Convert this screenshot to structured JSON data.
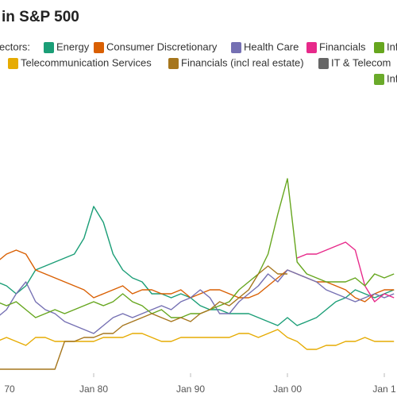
{
  "chart_data": {
    "type": "line",
    "title": "in S&P 500",
    "legend_title": "ectors:",
    "x": [
      1970,
      1971,
      1972,
      1973,
      1974,
      1975,
      1976,
      1977,
      1978,
      1979,
      1980,
      1981,
      1982,
      1983,
      1984,
      1985,
      1986,
      1987,
      1988,
      1989,
      1990,
      1991,
      1992,
      1993,
      1994,
      1995,
      1996,
      1997,
      1998,
      1999,
      2000,
      2001,
      2002,
      2003,
      2004,
      2005,
      2006,
      2007,
      2008,
      2009,
      2010,
      2011
    ],
    "xlim": [
      1970.33,
      2011.31
    ],
    "xticks": [
      {
        "value": 1970,
        "label": "70"
      },
      {
        "value": 1980,
        "label": "Jan 80"
      },
      {
        "value": 1990,
        "label": "Jan 90"
      },
      {
        "value": 2000,
        "label": "Jan 00"
      },
      {
        "value": 2010,
        "label": "Jan 1"
      }
    ],
    "ylim": [
      0,
      28
    ],
    "series": [
      {
        "name": "Energy",
        "color": "#1b9e77",
        "values": [
          11.5,
          11,
          10,
          11,
          13,
          13.5,
          14,
          14.5,
          15,
          17,
          21,
          19,
          15,
          13,
          12,
          11.5,
          10,
          10,
          9.5,
          10,
          9.5,
          8.5,
          8,
          8,
          7.5,
          7.5,
          7.5,
          7,
          6.5,
          6,
          7,
          6,
          6.5,
          7,
          8,
          9,
          9.5,
          10.5,
          10,
          9.5,
          10,
          10.5
        ]
      },
      {
        "name": "Consumer Discretionary",
        "color": "#d95f02",
        "values": [
          14,
          15,
          15.5,
          15,
          13,
          12.5,
          12,
          11.5,
          11,
          10.5,
          9.5,
          10,
          10.5,
          11,
          10,
          10.5,
          10.5,
          10,
          10,
          10.5,
          9.5,
          10,
          10.5,
          10.5,
          10,
          9.5,
          9.5,
          10,
          11,
          12,
          13,
          12.5,
          12,
          11.5,
          11.5,
          11,
          10.5,
          9.5,
          9,
          10,
          10.5,
          10.5
        ]
      },
      {
        "name": "Health Care",
        "color": "#7570b3",
        "values": [
          7,
          8,
          10,
          11.5,
          9,
          8,
          7.5,
          6.5,
          6,
          5.5,
          5,
          6,
          7,
          7.5,
          7,
          7.5,
          8,
          8.5,
          8,
          9,
          9.5,
          10.5,
          9.5,
          7.5,
          7.5,
          9,
          10,
          11,
          12.5,
          11.5,
          13,
          12.5,
          12,
          11.5,
          10.5,
          10,
          9.5,
          9,
          9.5,
          10,
          9.5,
          10
        ]
      },
      {
        "name": "Financials",
        "color": "#e7298a",
        "values": [
          null,
          null,
          null,
          null,
          null,
          null,
          null,
          null,
          null,
          null,
          null,
          null,
          null,
          null,
          null,
          null,
          null,
          null,
          null,
          null,
          null,
          null,
          null,
          null,
          null,
          null,
          null,
          null,
          null,
          null,
          null,
          14.5,
          15,
          15,
          15.5,
          16,
          16.5,
          15.5,
          11,
          9,
          10,
          9.5
        ]
      },
      {
        "name": "Inf",
        "color": "#66a61e",
        "values": [
          9,
          8.5,
          9,
          8,
          7,
          7.5,
          8,
          7.5,
          8,
          8.5,
          9,
          8.5,
          9,
          10,
          9,
          8.5,
          7.5,
          8,
          7,
          7,
          7.5,
          7.5,
          8,
          8.5,
          9,
          10.5,
          11.5,
          12.5,
          15,
          20,
          24.5,
          14,
          12.5,
          12,
          11.5,
          11.5,
          11.5,
          12,
          11,
          12.5,
          12,
          12.5
        ]
      },
      {
        "name": "Telecommunication Services",
        "color": "#e6ab02",
        "values": [
          4,
          4.5,
          4,
          3.5,
          4.5,
          4.5,
          4,
          4,
          4,
          4,
          4,
          4.5,
          4.5,
          4.5,
          5,
          5,
          4.5,
          4,
          4,
          4.5,
          4.5,
          4.5,
          4.5,
          4.5,
          4.5,
          5,
          5,
          4.5,
          5,
          5.5,
          4.5,
          4,
          3,
          3,
          3.5,
          3.5,
          4,
          4,
          4.5,
          4,
          4,
          4
        ]
      },
      {
        "name": "Financials (incl real estate)",
        "color": "#a6761d",
        "values": [
          0.5,
          0.5,
          0.5,
          0.5,
          0.5,
          0.5,
          0.5,
          4,
          4,
          4.5,
          4.5,
          5,
          5,
          6,
          6.5,
          7,
          7.5,
          7,
          6.5,
          7,
          6.5,
          7.5,
          8,
          9,
          8.5,
          9.5,
          10.5,
          12.5,
          13.5,
          12.5,
          12.5,
          null,
          null,
          null,
          null,
          null,
          null,
          null,
          null,
          null,
          null,
          null
        ]
      },
      {
        "name": "IT & Telecom",
        "color": "#666666",
        "values": [
          null,
          null,
          null,
          null,
          null,
          null,
          null,
          null,
          null,
          null,
          null,
          null,
          null,
          null,
          null,
          null,
          null,
          null,
          null,
          null,
          null,
          null,
          null,
          null,
          null,
          null,
          null,
          null,
          null,
          null,
          null,
          null,
          null,
          null,
          null,
          null,
          null,
          null,
          null,
          null,
          null,
          null
        ]
      },
      {
        "name": "Inf",
        "color": "#6aaa2a",
        "values": [
          null,
          null,
          null,
          null,
          null,
          null,
          null,
          null,
          null,
          null,
          null,
          null,
          null,
          null,
          null,
          null,
          null,
          null,
          null,
          null,
          null,
          null,
          null,
          null,
          null,
          null,
          null,
          null,
          null,
          null,
          null,
          null,
          null,
          null,
          null,
          null,
          null,
          null,
          null,
          null,
          null,
          null
        ]
      }
    ]
  }
}
